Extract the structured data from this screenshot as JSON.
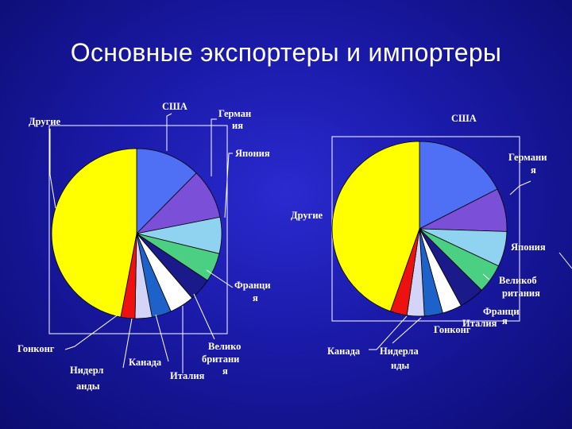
{
  "slide": {
    "title": "Основные экспортеры и импортеры"
  },
  "chart_data": [
    {
      "type": "pie",
      "title": "",
      "slices": [
        {
          "label": "США",
          "label_lines": [
            "США"
          ],
          "value": 12.4,
          "color": "#4f6ff5"
        },
        {
          "label": "Германия",
          "label_lines": [
            "Герман",
            "ия"
          ],
          "value": 9.5,
          "color": "#7b4fd8"
        },
        {
          "label": "Япония",
          "label_lines": [
            "Япония"
          ],
          "value": 6.9,
          "color": "#8fd3f0"
        },
        {
          "label": "Франция",
          "label_lines": [
            "Франци",
            "я"
          ],
          "value": 5.5,
          "color": "#4bcf82"
        },
        {
          "label": "Великобритания",
          "label_lines": [
            "Велико",
            "британи",
            "я"
          ],
          "value": 4.4,
          "color": "#1a1a8a"
        },
        {
          "label": "Италия",
          "label_lines": [
            "Италия"
          ],
          "value": 4.7,
          "color": "#ffffff"
        },
        {
          "label": "Канада",
          "label_lines": [
            "Канада"
          ],
          "value": 3.7,
          "color": "#1c62c8"
        },
        {
          "label": "Нидерланды",
          "label_lines": [
            "Нидерл",
            "анды"
          ],
          "value": 3.2,
          "color": "#d4d4f8"
        },
        {
          "label": "Гонконг",
          "label_lines": [
            "Гонконг"
          ],
          "value": 2.7,
          "color": "#ee1111"
        },
        {
          "label": "Другие",
          "label_lines": [
            "Другие"
          ],
          "value": 47.0,
          "color": "#ffff00"
        }
      ]
    },
    {
      "type": "pie",
      "title": "",
      "slices": [
        {
          "label": "США",
          "label_lines": [
            "США"
          ],
          "value": 17.5,
          "color": "#4f6ff5"
        },
        {
          "label": "Германия",
          "label_lines": [
            "Германи",
            "я"
          ],
          "value": 8.0,
          "color": "#7b4fd8"
        },
        {
          "label": "Япония",
          "label_lines": [
            "Япония"
          ],
          "value": 6.5,
          "color": "#8fd3f0"
        },
        {
          "label": "Великобритания",
          "label_lines": [
            "Великоб",
            "ритания"
          ],
          "value": 5.4,
          "color": "#4bcf82"
        },
        {
          "label": "Франция",
          "label_lines": [
            "Франци",
            "я"
          ],
          "value": 4.7,
          "color": "#1a1a8a"
        },
        {
          "label": "Италия",
          "label_lines": [
            "Италия"
          ],
          "value": 3.6,
          "color": "#ffffff"
        },
        {
          "label": "Гонконг",
          "label_lines": [
            "Гонконг"
          ],
          "value": 3.4,
          "color": "#1c62c8"
        },
        {
          "label": "Нидерланды",
          "label_lines": [
            "Нидерла",
            "нды"
          ],
          "value": 3.2,
          "color": "#d4d4f8"
        },
        {
          "label": "Канада",
          "label_lines": [
            "Канада"
          ],
          "value": 3.1,
          "color": "#ee1111"
        },
        {
          "label": "Другие",
          "label_lines": [
            "Другие"
          ],
          "value": 44.6,
          "color": "#ffff00"
        }
      ]
    }
  ]
}
